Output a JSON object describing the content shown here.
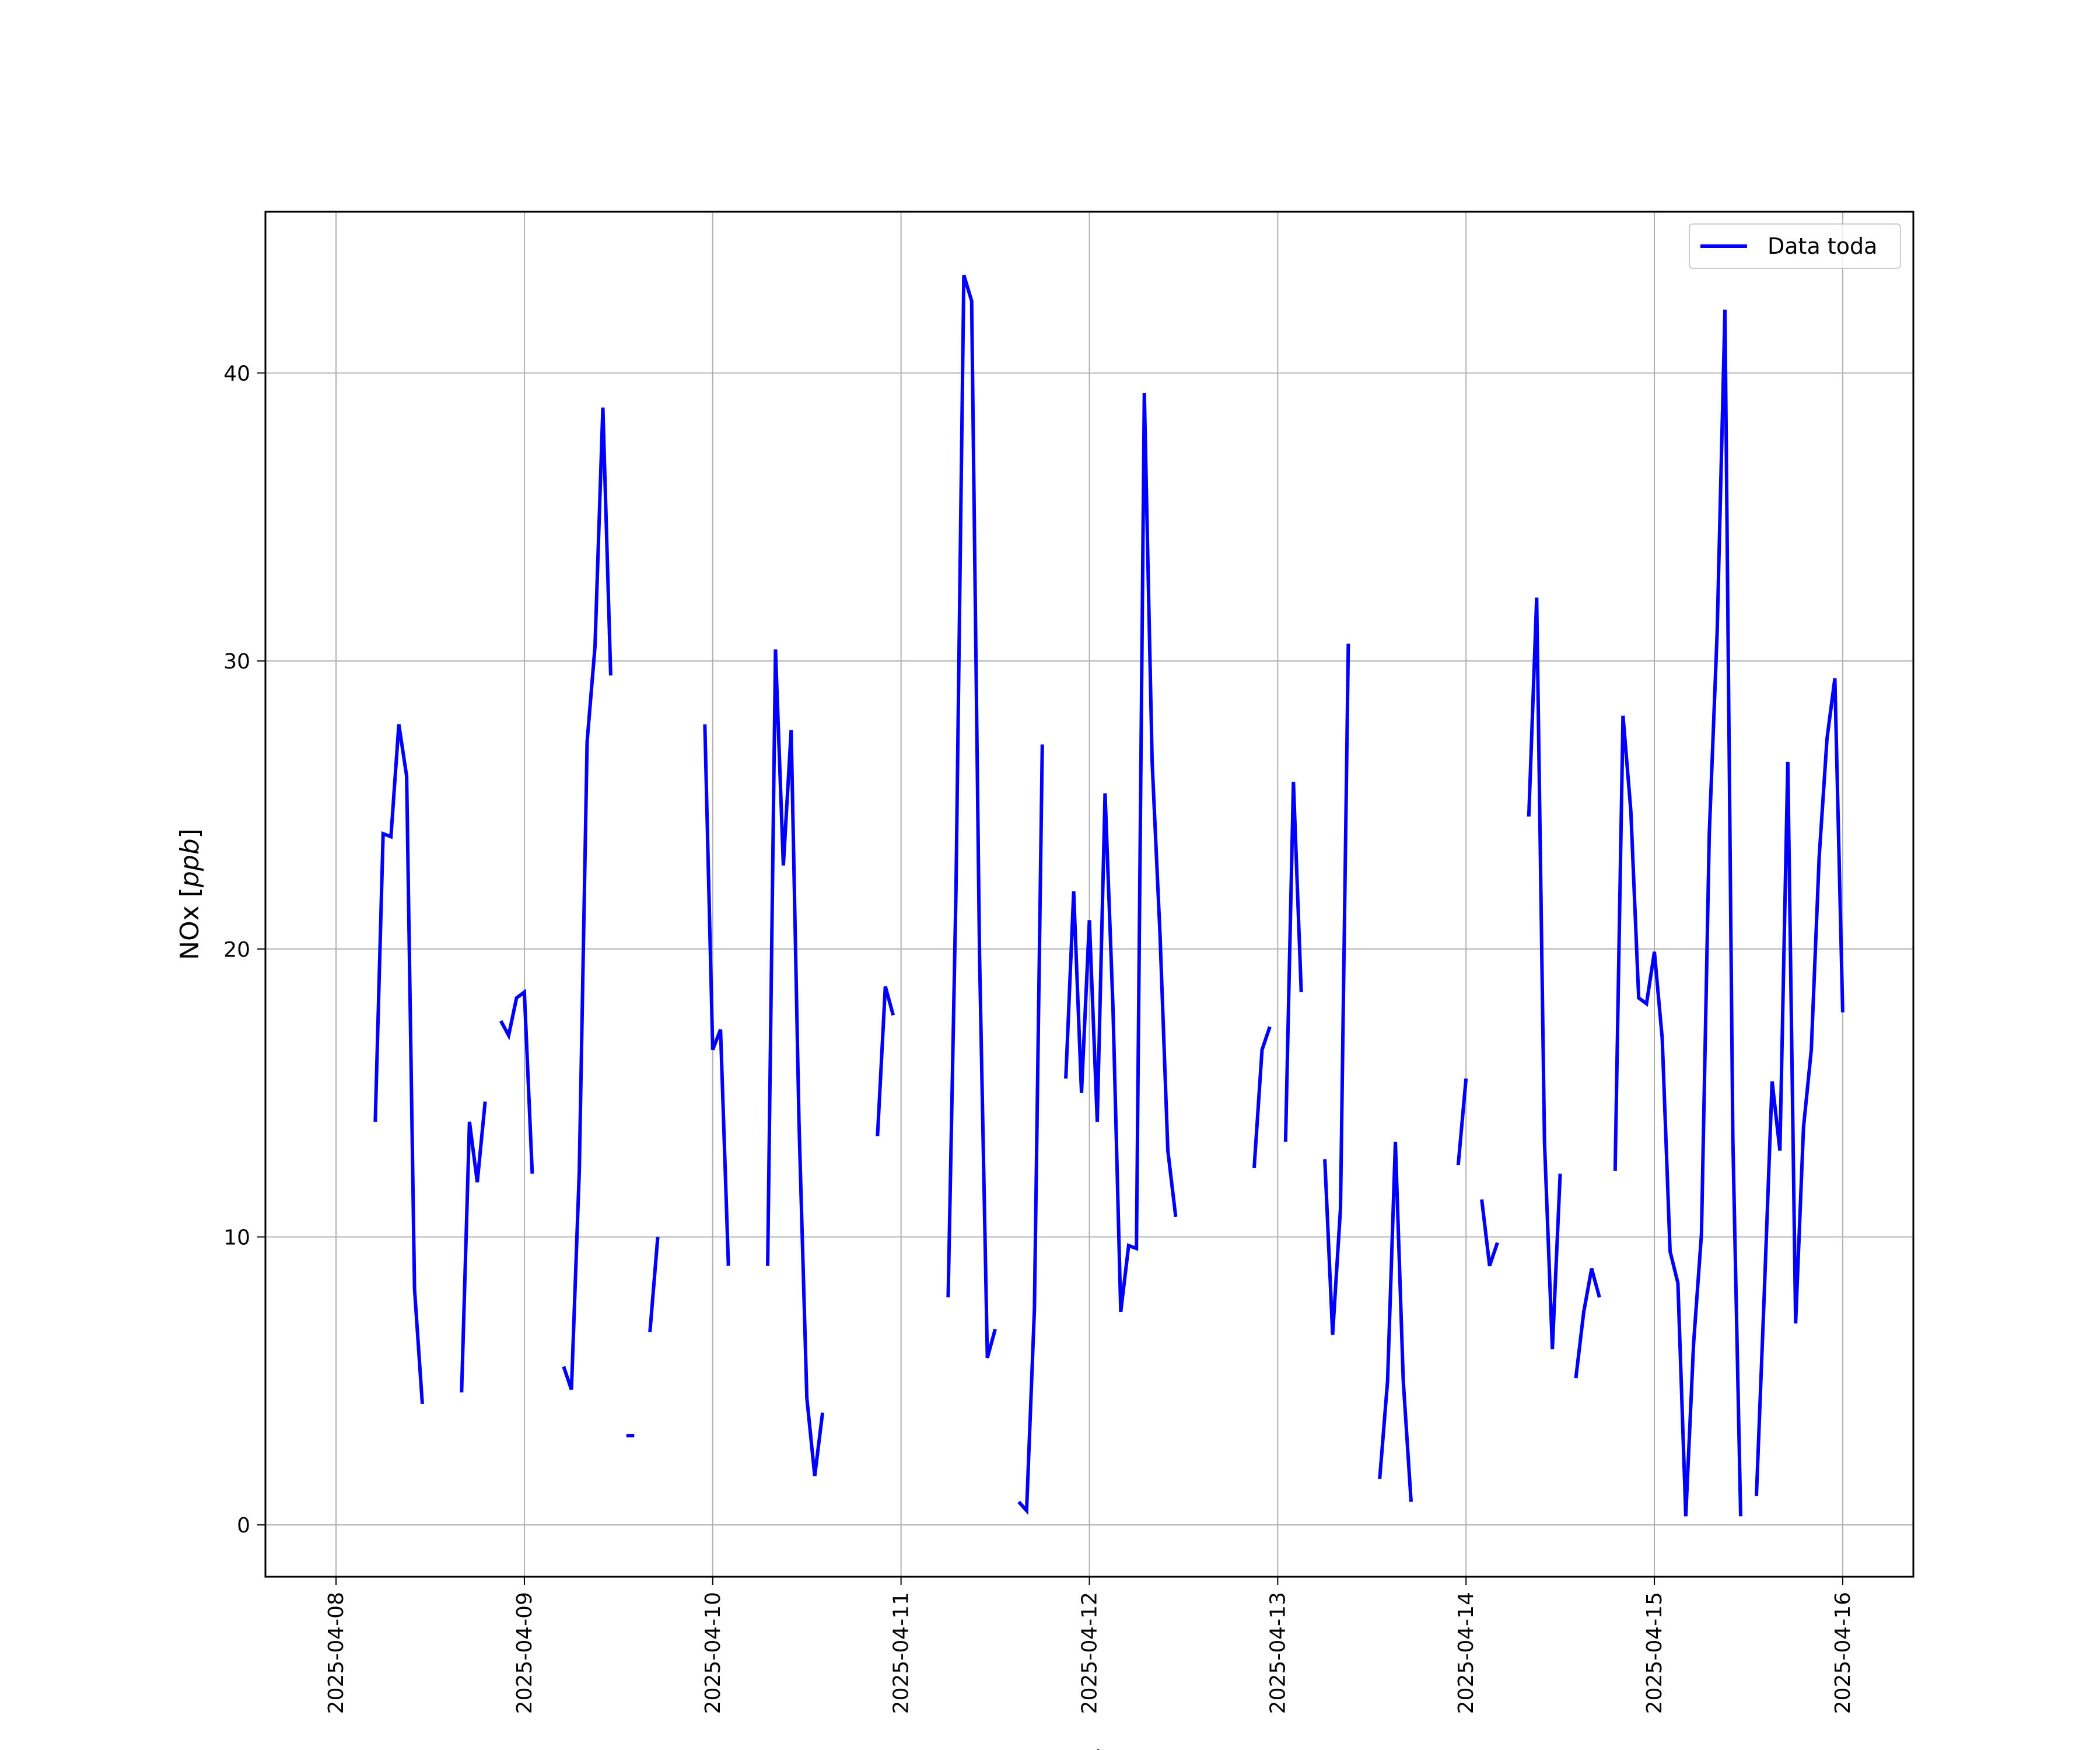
{
  "chart_data": {
    "type": "line",
    "xlabel": "Fecha",
    "ylabel": "NOx [ppb]",
    "xlim": [
      "2025-04-07T15:00",
      "2025-04-16T09:00"
    ],
    "ylim": [
      -1.8,
      45.6
    ],
    "x_ticks": [
      "2025-04-08",
      "2025-04-09",
      "2025-04-10",
      "2025-04-11",
      "2025-04-12",
      "2025-04-13",
      "2025-04-14",
      "2025-04-15",
      "2025-04-16"
    ],
    "y_ticks": [
      0,
      10,
      20,
      30,
      40
    ],
    "grid": true,
    "legend": {
      "position": "upper-right",
      "entries": [
        "Data toda"
      ]
    },
    "colors": {
      "series": "#0000ff",
      "grid": "#b0b0b0",
      "frame": "#000000"
    },
    "series": [
      {
        "name": "Data toda",
        "segments": [
          [
            [
              "2025-04-08T05:00",
              14.0
            ],
            [
              "2025-04-08T06:00",
              24.0
            ],
            [
              "2025-04-08T07:00",
              23.9
            ],
            [
              "2025-04-08T08:00",
              27.8
            ],
            [
              "2025-04-08T09:00",
              26.0
            ],
            [
              "2025-04-08T10:00",
              8.2
            ],
            [
              "2025-04-08T11:00",
              4.2
            ]
          ],
          [
            [
              "2025-04-08T16:00",
              4.6
            ],
            [
              "2025-04-08T17:00",
              14.0
            ],
            [
              "2025-04-08T18:00",
              11.9
            ],
            [
              "2025-04-08T19:00",
              14.7
            ]
          ],
          [
            [
              "2025-04-08T21:00",
              17.5
            ],
            [
              "2025-04-08T22:00",
              17.0
            ],
            [
              "2025-04-08T23:00",
              18.3
            ],
            [
              "2025-04-09T00:00",
              18.5
            ],
            [
              "2025-04-09T01:00",
              12.2
            ]
          ],
          [
            [
              "2025-04-09T05:00",
              5.5
            ],
            [
              "2025-04-09T06:00",
              4.7
            ],
            [
              "2025-04-09T07:00",
              12.3
            ],
            [
              "2025-04-09T08:00",
              27.2
            ],
            [
              "2025-04-09T09:00",
              30.5
            ],
            [
              "2025-04-09T10:00",
              38.8
            ],
            [
              "2025-04-09T11:00",
              29.5
            ]
          ],
          [
            [
              "2025-04-09T13:00",
              3.1
            ],
            [
              "2025-04-09T14:00",
              3.1
            ]
          ],
          [
            [
              "2025-04-09T16:00",
              6.7
            ],
            [
              "2025-04-09T17:00",
              10.0
            ]
          ],
          [
            [
              "2025-04-09T23:00",
              27.8
            ],
            [
              "2025-04-10T00:00",
              16.5
            ],
            [
              "2025-04-10T01:00",
              17.2
            ],
            [
              "2025-04-10T02:00",
              9.0
            ]
          ],
          [
            [
              "2025-04-10T07:00",
              9.0
            ],
            [
              "2025-04-10T08:00",
              30.4
            ],
            [
              "2025-04-10T09:00",
              22.9
            ],
            [
              "2025-04-10T10:00",
              27.6
            ],
            [
              "2025-04-10T11:00",
              13.9
            ],
            [
              "2025-04-10T12:00",
              4.4
            ],
            [
              "2025-04-10T13:00",
              1.7
            ],
            [
              "2025-04-10T14:00",
              3.9
            ]
          ],
          [
            [
              "2025-04-10T21:00",
              13.5
            ],
            [
              "2025-04-10T22:00",
              18.7
            ],
            [
              "2025-04-10T23:00",
              17.7
            ]
          ],
          [
            [
              "2025-04-11T06:00",
              7.9
            ],
            [
              "2025-04-11T07:00",
              22.0
            ],
            [
              "2025-04-11T08:00",
              43.4
            ],
            [
              "2025-04-11T09:00",
              42.5
            ],
            [
              "2025-04-11T10:00",
              19.8
            ],
            [
              "2025-04-11T11:00",
              5.8
            ],
            [
              "2025-04-11T12:00",
              6.8
            ]
          ],
          [
            [
              "2025-04-11T15:00",
              0.8
            ],
            [
              "2025-04-11T16:00",
              0.5
            ],
            [
              "2025-04-11T17:00",
              7.5
            ],
            [
              "2025-04-11T18:00",
              27.1
            ]
          ],
          [
            [
              "2025-04-11T21:00",
              15.5
            ],
            [
              "2025-04-11T22:00",
              22.0
            ],
            [
              "2025-04-11T23:00",
              15.0
            ],
            [
              "2025-04-12T00:00",
              21.0
            ],
            [
              "2025-04-12T01:00",
              14.0
            ],
            [
              "2025-04-12T02:00",
              25.4
            ],
            [
              "2025-04-12T03:00",
              18.0
            ],
            [
              "2025-04-12T04:00",
              7.4
            ],
            [
              "2025-04-12T05:00",
              9.7
            ],
            [
              "2025-04-12T06:00",
              9.6
            ],
            [
              "2025-04-12T07:00",
              39.3
            ],
            [
              "2025-04-12T08:00",
              26.5
            ],
            [
              "2025-04-12T09:00",
              20.5
            ],
            [
              "2025-04-12T10:00",
              13.0
            ],
            [
              "2025-04-12T11:00",
              10.7
            ]
          ],
          [
            [
              "2025-04-12T21:00",
              12.4
            ],
            [
              "2025-04-12T22:00",
              16.5
            ],
            [
              "2025-04-12T23:00",
              17.3
            ]
          ],
          [
            [
              "2025-04-13T01:00",
              13.3
            ],
            [
              "2025-04-13T02:00",
              25.8
            ],
            [
              "2025-04-13T03:00",
              18.5
            ]
          ],
          [
            [
              "2025-04-13T06:00",
              12.7
            ],
            [
              "2025-04-13T07:00",
              6.6
            ],
            [
              "2025-04-13T08:00",
              11.0
            ],
            [
              "2025-04-13T09:00",
              30.6
            ]
          ],
          [
            [
              "2025-04-13T13:00",
              1.6
            ],
            [
              "2025-04-13T14:00",
              5.0
            ],
            [
              "2025-04-13T15:00",
              13.3
            ],
            [
              "2025-04-13T16:00",
              5.0
            ],
            [
              "2025-04-13T17:00",
              0.8
            ]
          ],
          [
            [
              "2025-04-13T23:00",
              12.5
            ],
            [
              "2025-04-14T00:00",
              15.5
            ]
          ],
          [
            [
              "2025-04-14T02:00",
              11.3
            ],
            [
              "2025-04-14T03:00",
              9.0
            ],
            [
              "2025-04-14T04:00",
              9.8
            ]
          ],
          [
            [
              "2025-04-14T08:00",
              24.6
            ],
            [
              "2025-04-14T09:00",
              32.2
            ],
            [
              "2025-04-14T10:00",
              13.3
            ],
            [
              "2025-04-14T11:00",
              6.1
            ],
            [
              "2025-04-14T12:00",
              12.2
            ]
          ],
          [
            [
              "2025-04-14T14:00",
              5.1
            ],
            [
              "2025-04-14T15:00",
              7.4
            ],
            [
              "2025-04-14T16:00",
              8.9
            ],
            [
              "2025-04-14T17:00",
              7.9
            ]
          ],
          [
            [
              "2025-04-14T19:00",
              12.3
            ],
            [
              "2025-04-14T20:00",
              28.1
            ],
            [
              "2025-04-14T21:00",
              24.8
            ],
            [
              "2025-04-14T22:00",
              18.3
            ],
            [
              "2025-04-14T23:00",
              18.1
            ],
            [
              "2025-04-15T00:00",
              19.9
            ],
            [
              "2025-04-15T01:00",
              16.9
            ],
            [
              "2025-04-15T02:00",
              9.5
            ],
            [
              "2025-04-15T03:00",
              8.4
            ],
            [
              "2025-04-15T04:00",
              0.3
            ],
            [
              "2025-04-15T05:00",
              6.3
            ],
            [
              "2025-04-15T06:00",
              10.1
            ],
            [
              "2025-04-15T07:00",
              24.0
            ],
            [
              "2025-04-15T08:00",
              31.0
            ],
            [
              "2025-04-15T09:00",
              42.2
            ],
            [
              "2025-04-15T10:00",
              13.4
            ],
            [
              "2025-04-15T11:00",
              0.3
            ]
          ],
          [
            [
              "2025-04-15T13:00",
              1.0
            ],
            [
              "2025-04-15T14:00",
              8.0
            ],
            [
              "2025-04-15T15:00",
              15.4
            ],
            [
              "2025-04-15T16:00",
              13.0
            ],
            [
              "2025-04-15T17:00",
              26.5
            ],
            [
              "2025-04-15T18:00",
              7.0
            ],
            [
              "2025-04-15T19:00",
              13.8
            ],
            [
              "2025-04-15T20:00",
              16.5
            ],
            [
              "2025-04-15T21:00",
              23.2
            ],
            [
              "2025-04-15T22:00",
              27.3
            ],
            [
              "2025-04-15T23:00",
              29.4
            ],
            [
              "2025-04-16T00:00",
              17.8
            ]
          ]
        ]
      }
    ]
  }
}
